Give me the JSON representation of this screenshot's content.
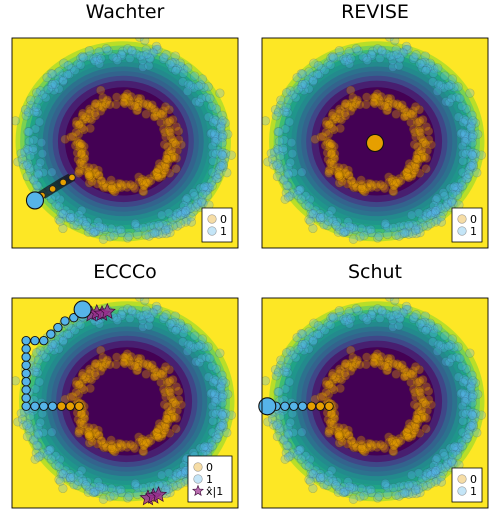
{
  "chart_data": [
    {
      "type": "scatter",
      "title": "Wachter",
      "legend": {
        "placement": "bottom-right",
        "entries": [
          "0",
          "1"
        ]
      },
      "classes": {
        "0": "ring (inner)",
        "1": "ring (outer)"
      },
      "counterfactual_path": [
        [
          -2.35,
          -1.6
        ],
        [
          -2.05,
          -1.4
        ],
        [
          -1.75,
          -1.2
        ],
        [
          -1.5,
          -1.05
        ]
      ],
      "final_counterfactual": [
        -2.55,
        -1.75
      ],
      "xlim": [
        -3.2,
        3.2
      ],
      "ylim": [
        -3.2,
        3.2
      ]
    },
    {
      "type": "scatter",
      "title": "REVISE",
      "legend": {
        "placement": "bottom-right",
        "entries": [
          "0",
          "1"
        ]
      },
      "counterfactual_path": [],
      "final_counterfactual": [
        0.0,
        0.0
      ],
      "xlim": [
        -3.2,
        3.2
      ],
      "ylim": [
        -3.2,
        3.2
      ]
    },
    {
      "type": "scatter",
      "title": "ECCCo",
      "legend": {
        "placement": "bottom-right",
        "entries": [
          "0",
          "1",
          "x̂|1"
        ]
      },
      "counterfactual_path": [
        [
          -1.3,
          -0.1
        ],
        [
          -1.55,
          -0.1
        ],
        [
          -1.8,
          -0.1
        ],
        [
          -2.05,
          -0.1
        ],
        [
          -2.3,
          -0.1
        ],
        [
          -2.55,
          -0.1
        ],
        [
          -2.8,
          -0.1
        ],
        [
          -2.8,
          0.15
        ],
        [
          -2.8,
          0.4
        ],
        [
          -2.8,
          0.65
        ],
        [
          -2.8,
          0.9
        ],
        [
          -2.8,
          1.15
        ],
        [
          -2.8,
          1.4
        ],
        [
          -2.8,
          1.65
        ],
        [
          -2.8,
          1.9
        ],
        [
          -2.55,
          1.9
        ],
        [
          -2.3,
          1.9
        ],
        [
          -2.1,
          2.1
        ],
        [
          -1.9,
          2.3
        ],
        [
          -1.7,
          2.5
        ],
        [
          -1.45,
          2.6
        ],
        [
          -1.2,
          2.75
        ]
      ],
      "final_counterfactual": [
        -1.2,
        2.85
      ],
      "generated_samples": [
        [
          -0.95,
          2.7
        ],
        [
          -0.8,
          2.75
        ],
        [
          -0.65,
          2.72
        ],
        [
          -0.5,
          2.78
        ],
        [
          0.65,
          -2.9
        ],
        [
          0.8,
          -2.85
        ],
        [
          0.95,
          -2.8
        ]
      ],
      "xlim": [
        -3.2,
        3.2
      ],
      "ylim": [
        -3.2,
        3.2
      ]
    },
    {
      "type": "scatter",
      "title": "Schut",
      "legend": {
        "placement": "bottom-right",
        "entries": [
          "0",
          "1"
        ]
      },
      "counterfactual_path": [
        [
          -1.3,
          -0.1
        ],
        [
          -1.55,
          -0.1
        ],
        [
          -1.8,
          -0.1
        ],
        [
          -2.05,
          -0.1
        ],
        [
          -2.3,
          -0.1
        ],
        [
          -2.55,
          -0.1
        ],
        [
          -2.8,
          -0.1
        ]
      ],
      "final_counterfactual": [
        -3.05,
        -0.1
      ],
      "xlim": [
        -3.2,
        3.2
      ],
      "ylim": [
        -3.2,
        3.2
      ]
    }
  ],
  "colors": {
    "class0": "#e69f00",
    "class1": "#56b4e9",
    "generated": "#9b2d8f",
    "contour_high": "#fde725",
    "contour_low": "#440154"
  }
}
